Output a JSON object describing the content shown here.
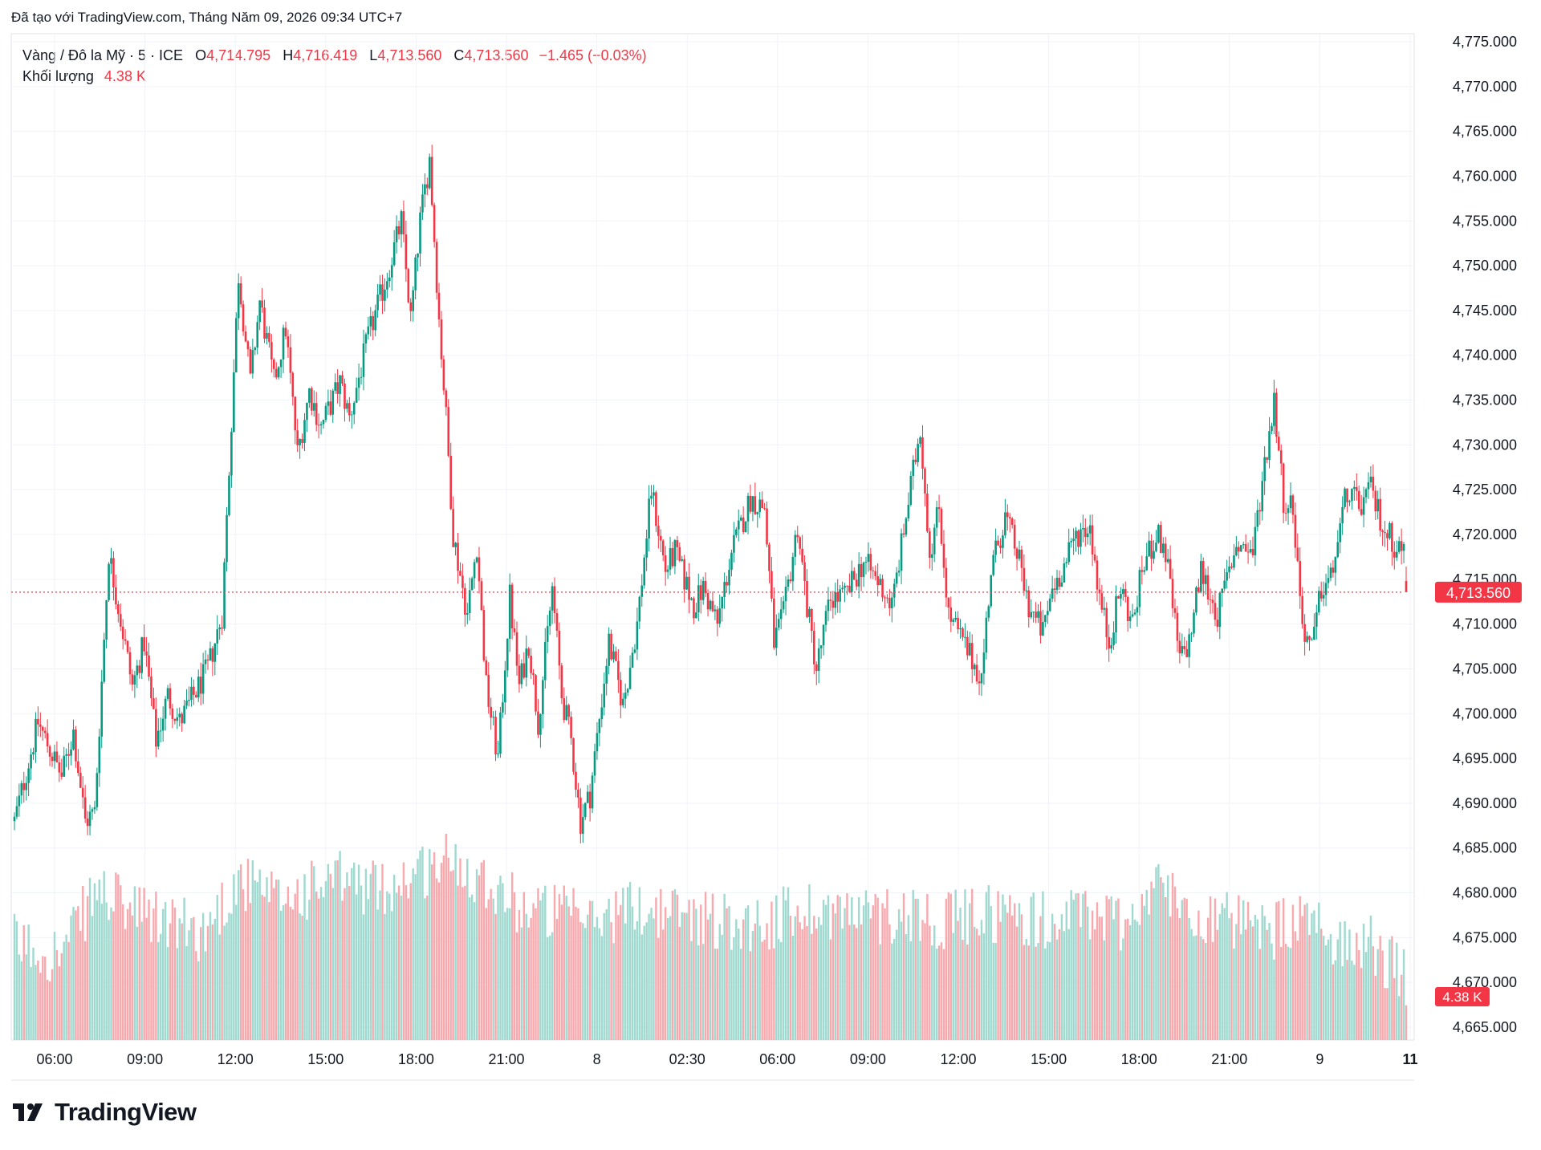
{
  "caption": "Đã tạo với TradingView.com, Tháng Năm 09, 2026 09:34 UTC+7",
  "legend": {
    "symbol": "Vàng / Đô la Mỹ · 5 · ICE",
    "o_label": "O",
    "o_value": "4,714.795",
    "h_label": "H",
    "h_value": "4,716.419",
    "l_label": "L",
    "l_value": "4,713.560",
    "c_label": "C",
    "c_value": "4,713.560",
    "change": "−1.465 (−0.03%)",
    "volume_label": "Khối lượng",
    "volume_value": "4.38 K"
  },
  "brand": "TradingView",
  "colors": {
    "up": "#089981",
    "down": "#f23645",
    "up_vol": "#9fd9cf",
    "down_vol": "#f7a9ae",
    "grid": "#f0f3fa",
    "price_tag": "#f23645"
  },
  "chart_data": {
    "type": "candlestick",
    "y_ticks": [
      "4,775.000",
      "4,770.000",
      "4,765.000",
      "4,760.000",
      "4,755.000",
      "4,750.000",
      "4,745.000",
      "4,740.000",
      "4,735.000",
      "4,730.000",
      "4,725.000",
      "4,720.000",
      "4,715.000",
      "4,710.000",
      "4,705.000",
      "4,700.000",
      "4,695.000",
      "4,690.000",
      "4,685.000",
      "4,680.000",
      "4,675.000",
      "4,670.000",
      "4,665.000"
    ],
    "ylim": [
      4665,
      4775
    ],
    "x_ticks": [
      "06:00",
      "09:00",
      "12:00",
      "15:00",
      "18:00",
      "21:00",
      "8",
      "02:30",
      "06:00",
      "09:00",
      "12:00",
      "15:00",
      "18:00",
      "21:00",
      "9",
      "11"
    ],
    "last_price": "4,713.560",
    "last_volume": "4.38 K",
    "path": [
      [
        0,
        4688
      ],
      [
        10,
        4699
      ],
      [
        20,
        4693
      ],
      [
        25,
        4698
      ],
      [
        30,
        4688
      ],
      [
        34,
        4689
      ],
      [
        40,
        4718
      ],
      [
        50,
        4703
      ],
      [
        55,
        4708
      ],
      [
        60,
        4697
      ],
      [
        65,
        4702
      ],
      [
        70,
        4699
      ],
      [
        82,
        4705
      ],
      [
        88,
        4711
      ],
      [
        95,
        4749
      ],
      [
        100,
        4737
      ],
      [
        104,
        4746
      ],
      [
        110,
        4737
      ],
      [
        115,
        4743
      ],
      [
        120,
        4729
      ],
      [
        125,
        4736
      ],
      [
        130,
        4732
      ],
      [
        138,
        4737
      ],
      [
        142,
        4733
      ],
      [
        150,
        4742
      ],
      [
        158,
        4749
      ],
      [
        164,
        4755
      ],
      [
        168,
        4744
      ],
      [
        172,
        4755
      ],
      [
        176,
        4762
      ],
      [
        180,
        4744
      ],
      [
        183,
        4733
      ],
      [
        186,
        4720
      ],
      [
        192,
        4711
      ],
      [
        196,
        4719
      ],
      [
        200,
        4703
      ],
      [
        205,
        4695
      ],
      [
        210,
        4713
      ],
      [
        214,
        4703
      ],
      [
        218,
        4708
      ],
      [
        222,
        4699
      ],
      [
        228,
        4714
      ],
      [
        232,
        4702
      ],
      [
        236,
        4697
      ],
      [
        240,
        4688
      ],
      [
        244,
        4691
      ],
      [
        252,
        4708
      ],
      [
        258,
        4701
      ],
      [
        264,
        4710
      ],
      [
        270,
        4725
      ],
      [
        276,
        4716
      ],
      [
        280,
        4718
      ],
      [
        288,
        4712
      ],
      [
        292,
        4714
      ],
      [
        298,
        4710
      ],
      [
        304,
        4718
      ],
      [
        312,
        4724
      ],
      [
        318,
        4723
      ],
      [
        322,
        4708
      ],
      [
        326,
        4711
      ],
      [
        332,
        4721
      ],
      [
        336,
        4712
      ],
      [
        340,
        4705
      ],
      [
        346,
        4713
      ],
      [
        352,
        4713
      ],
      [
        360,
        4717
      ],
      [
        368,
        4714
      ],
      [
        372,
        4712
      ],
      [
        378,
        4722
      ],
      [
        384,
        4732
      ],
      [
        388,
        4718
      ],
      [
        392,
        4723
      ],
      [
        396,
        4711
      ],
      [
        404,
        4707
      ],
      [
        410,
        4704
      ],
      [
        414,
        4716
      ],
      [
        420,
        4722
      ],
      [
        425,
        4718
      ],
      [
        430,
        4712
      ],
      [
        436,
        4709
      ],
      [
        440,
        4714
      ],
      [
        446,
        4717
      ],
      [
        450,
        4720
      ],
      [
        456,
        4721
      ],
      [
        460,
        4713
      ],
      [
        464,
        4708
      ],
      [
        469,
        4714
      ],
      [
        474,
        4710
      ],
      [
        478,
        4716
      ],
      [
        484,
        4720
      ],
      [
        488,
        4718
      ],
      [
        494,
        4706
      ],
      [
        498,
        4708
      ],
      [
        503,
        4716
      ],
      [
        510,
        4711
      ],
      [
        518,
        4719
      ],
      [
        525,
        4718
      ],
      [
        530,
        4728
      ],
      [
        534,
        4735
      ],
      [
        538,
        4724
      ],
      [
        542,
        4723
      ],
      [
        546,
        4710
      ],
      [
        550,
        4707
      ],
      [
        554,
        4714
      ],
      [
        558,
        4715
      ],
      [
        565,
        4725
      ],
      [
        570,
        4723
      ],
      [
        575,
        4725
      ],
      [
        580,
        4721
      ],
      [
        585,
        4719
      ],
      [
        590,
        4718
      ]
    ],
    "volume_path": [
      [
        0,
        0.45
      ],
      [
        20,
        0.4
      ],
      [
        35,
        0.7
      ],
      [
        50,
        0.6
      ],
      [
        65,
        0.55
      ],
      [
        80,
        0.5
      ],
      [
        95,
        0.75
      ],
      [
        110,
        0.65
      ],
      [
        125,
        0.7
      ],
      [
        140,
        0.75
      ],
      [
        155,
        0.7
      ],
      [
        170,
        0.78
      ],
      [
        185,
        0.85
      ],
      [
        200,
        0.75
      ],
      [
        215,
        0.62
      ],
      [
        230,
        0.6
      ],
      [
        245,
        0.55
      ],
      [
        260,
        0.62
      ],
      [
        275,
        0.6
      ],
      [
        290,
        0.58
      ],
      [
        305,
        0.55
      ],
      [
        320,
        0.55
      ],
      [
        335,
        0.62
      ],
      [
        350,
        0.6
      ],
      [
        365,
        0.58
      ],
      [
        380,
        0.6
      ],
      [
        395,
        0.55
      ],
      [
        410,
        0.6
      ],
      [
        425,
        0.58
      ],
      [
        440,
        0.55
      ],
      [
        455,
        0.6
      ],
      [
        470,
        0.55
      ],
      [
        485,
        0.72
      ],
      [
        500,
        0.6
      ],
      [
        515,
        0.55
      ],
      [
        530,
        0.5
      ],
      [
        545,
        0.55
      ],
      [
        560,
        0.48
      ],
      [
        575,
        0.45
      ],
      [
        590,
        0.28
      ]
    ]
  }
}
